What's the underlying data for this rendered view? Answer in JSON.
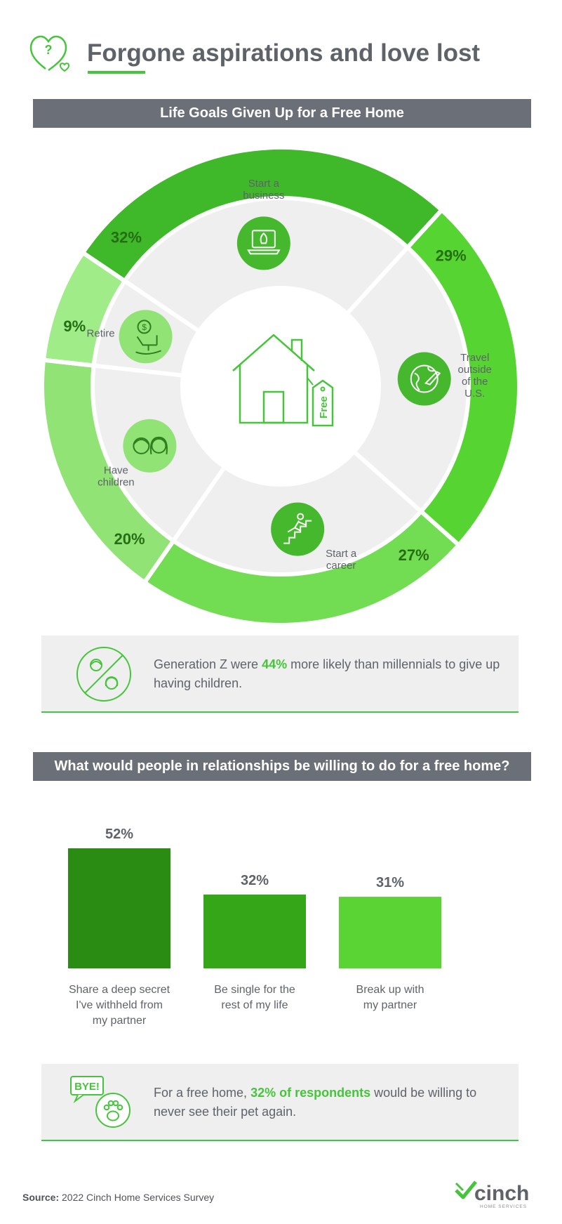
{
  "page": {
    "title": "Forgone aspirations and love lost",
    "source_label": "Source:",
    "source_text": "2022 Cinch Home Services Survey",
    "logo_text": "cinch",
    "logo_sub": "HOME SERVICES"
  },
  "donut_title": "Life Goals Given Up for a Free Home",
  "bars_title": "What would people in relationships be willing to do for a free home?",
  "center_tag": "Free",
  "callout1": {
    "pre": "Generation Z were ",
    "highlight": "44%",
    "post": " more likely than millennials to give up having children.",
    "icon": "no-children-icon"
  },
  "callout2": {
    "pre": "For a free home, ",
    "highlight": "32% of respondents",
    "post": " would be willing to never see their pet again.",
    "badge": "BYE!",
    "icon": "pet-paw-icon"
  },
  "colors": {
    "accent": "#45c53a",
    "banner": "#6b6f78",
    "text": "#5f6369",
    "callout_bg": "#efefef"
  },
  "chart_data": [
    {
      "type": "pie",
      "title": "Life Goals Given Up for a Free Home",
      "categories": [
        "Start a business",
        "Travel outside of the U.S.",
        "Start a career",
        "Have children",
        "Retire"
      ],
      "values": [
        32,
        29,
        27,
        20,
        9
      ],
      "value_labels": [
        "32%",
        "29%",
        "27%",
        "20%",
        "9%"
      ],
      "icons": [
        "rocket-laptop-icon",
        "globe-plane-icon",
        "climbing-stairs-icon",
        "children-icon",
        "rocking-chair-icon"
      ],
      "colors": [
        "#3fb82a",
        "#56d432",
        "#72dc52",
        "#90e374",
        "#a0ec88"
      ]
    },
    {
      "type": "bar",
      "title": "What would people in relationships be willing to do for a free home?",
      "categories": [
        "Share a deep secret I've withheld from my partner",
        "Be single for the rest of my life",
        "Break up with my partner"
      ],
      "values": [
        52,
        32,
        31
      ],
      "value_labels": [
        "52%",
        "32%",
        "31%"
      ],
      "colors": [
        "#2a8c12",
        "#36a619",
        "#5ad334"
      ],
      "ylim": [
        0,
        52
      ]
    }
  ]
}
